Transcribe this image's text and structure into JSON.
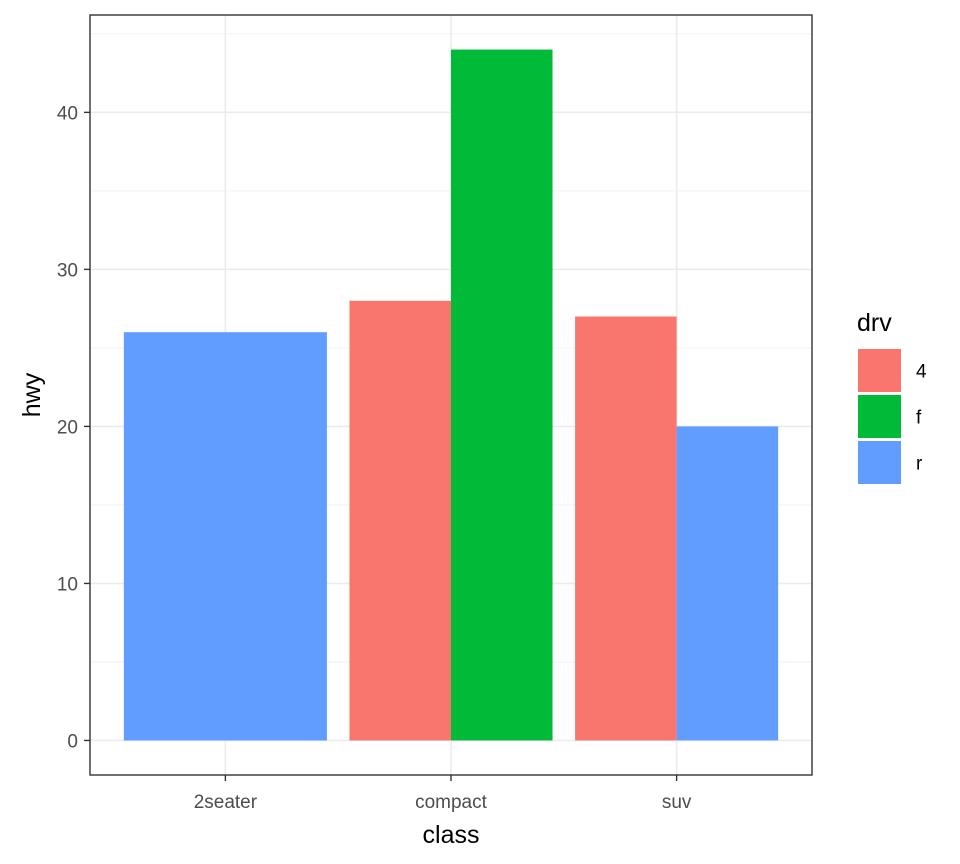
{
  "chart_data": {
    "type": "bar",
    "categories": [
      "2seater",
      "compact",
      "suv"
    ],
    "xlabel": "class",
    "ylabel": "hwy",
    "ylim": [
      -2.2,
      46.2
    ],
    "yticks": [
      0,
      10,
      20,
      30,
      40
    ],
    "grid": true,
    "legend": {
      "title": "drv",
      "placement": "right",
      "entries": [
        {
          "label": "4",
          "color": "#f8766d"
        },
        {
          "label": "f",
          "color": "#00ba38"
        },
        {
          "label": "r",
          "color": "#619cff"
        }
      ]
    },
    "bars": [
      {
        "category": "2seater",
        "group": "r",
        "value": 26,
        "slot": 0,
        "slots": 1
      },
      {
        "category": "compact",
        "group": "4",
        "value": 28,
        "slot": 0,
        "slots": 2
      },
      {
        "category": "compact",
        "group": "f",
        "value": 44,
        "slot": 1,
        "slots": 2
      },
      {
        "category": "suv",
        "group": "4",
        "value": 27,
        "slot": 0,
        "slots": 2
      },
      {
        "category": "suv",
        "group": "r",
        "value": 20,
        "slot": 1,
        "slots": 2
      }
    ]
  }
}
